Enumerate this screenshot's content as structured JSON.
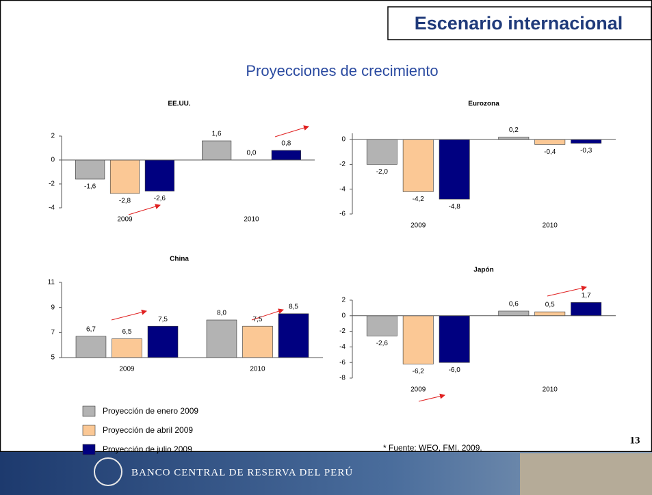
{
  "header": {
    "title": "Escenario internacional",
    "subtitle": "Proyecciones de crecimiento"
  },
  "chart_data": [
    {
      "type": "bar",
      "title": "EE.UU.",
      "categories": [
        "2009",
        "2010"
      ],
      "ylim": [
        -4,
        2
      ],
      "yticks": [
        -4,
        -2,
        0,
        2
      ],
      "series": [
        {
          "name": "Proyección de enero 2009",
          "color": "#b3b3b3",
          "values": [
            -1.6,
            1.6
          ],
          "value_labels": [
            "-1,6",
            "1,6"
          ]
        },
        {
          "name": "Proyección de abril 2009",
          "color": "#fbc895",
          "values": [
            -2.8,
            0.0
          ],
          "value_labels": [
            "-2,8",
            "0,0"
          ]
        },
        {
          "name": "Proyección de julio 2009",
          "color": "#000080",
          "values": [
            -2.6,
            0.8
          ],
          "value_labels": [
            "-2,6",
            "0,8"
          ]
        }
      ]
    },
    {
      "type": "bar",
      "title": "Eurozona",
      "categories": [
        "2009",
        "2010"
      ],
      "ylim": [
        -6,
        0.5
      ],
      "yticks": [
        -6,
        -4,
        -2,
        0
      ],
      "series": [
        {
          "color": "#b3b3b3",
          "values": [
            -2.0,
            0.2
          ],
          "value_labels": [
            "-2,0",
            "0,2"
          ]
        },
        {
          "color": "#fbc895",
          "values": [
            -4.2,
            -0.4
          ],
          "value_labels": [
            "-4,2",
            "-0,4"
          ]
        },
        {
          "color": "#000080",
          "values": [
            -4.8,
            -0.3
          ],
          "value_labels": [
            "-4,8",
            "-0,3"
          ]
        }
      ]
    },
    {
      "type": "bar",
      "title": "China",
      "categories": [
        "2009",
        "2010"
      ],
      "ylim": [
        5,
        11
      ],
      "yticks": [
        5,
        7,
        9,
        11
      ],
      "series": [
        {
          "color": "#b3b3b3",
          "values": [
            6.7,
            8.0
          ],
          "value_labels": [
            "6,7",
            "8,0"
          ]
        },
        {
          "color": "#fbc895",
          "values": [
            6.5,
            7.5
          ],
          "value_labels": [
            "6,5",
            "7,5"
          ]
        },
        {
          "color": "#000080",
          "values": [
            7.5,
            8.5
          ],
          "value_labels": [
            "7,5",
            "8,5"
          ]
        }
      ]
    },
    {
      "type": "bar",
      "title": "Japón",
      "categories": [
        "2009",
        "2010"
      ],
      "ylim": [
        -8,
        2
      ],
      "yticks": [
        -8,
        -6,
        -4,
        -2,
        0,
        2
      ],
      "series": [
        {
          "color": "#b3b3b3",
          "values": [
            -2.6,
            0.6
          ],
          "value_labels": [
            "-2,6",
            "0,6"
          ]
        },
        {
          "color": "#fbc895",
          "values": [
            -6.2,
            0.5
          ],
          "value_labels": [
            "-6,2",
            "0,5"
          ]
        },
        {
          "color": "#000080",
          "values": [
            -6.0,
            1.7
          ],
          "value_labels": [
            "-6,0",
            "1,7"
          ]
        }
      ]
    }
  ],
  "source": "* Fuente: WEO, FMI, 2009.",
  "page_number": "13",
  "footer": "BANCO CENTRAL DE RESERVA DEL PERÚ"
}
